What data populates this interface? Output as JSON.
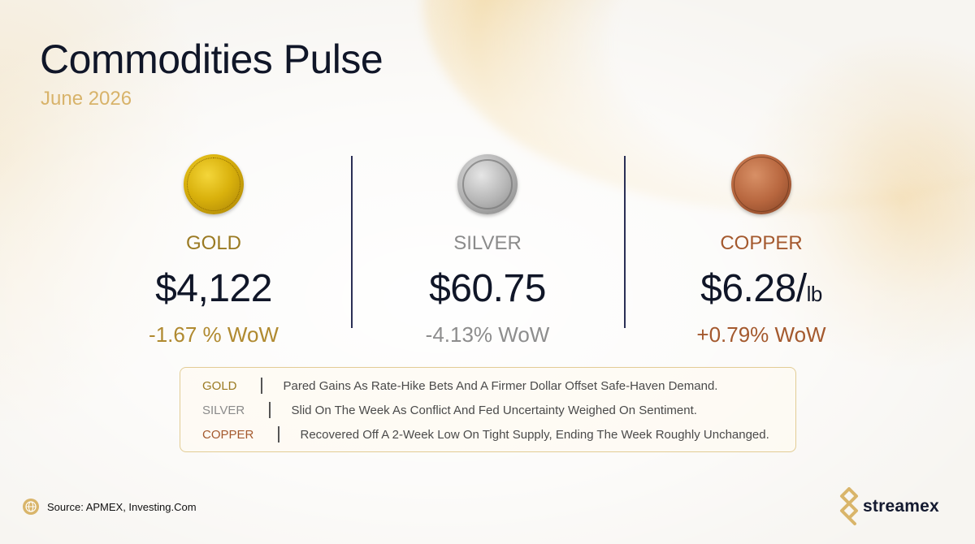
{
  "header": {
    "title": "Commodities Pulse",
    "subtitle": "June 2026"
  },
  "metals": [
    {
      "name": "GOLD",
      "price": "$4,122",
      "unit": "",
      "change": "-1.67 % WoW"
    },
    {
      "name": "SILVER",
      "price": "$60.75",
      "unit": "",
      "change": "-4.13% WoW"
    },
    {
      "name": "COPPER",
      "price": "$6.28/",
      "unit": "lb",
      "change": "+0.79% WoW"
    }
  ],
  "notes": [
    {
      "label": "GOLD",
      "text": "Pared Gains As Rate-Hike Bets And A Firmer Dollar Offset Safe-Haven Demand."
    },
    {
      "label": "SILVER",
      "text": "Slid On The Week As Conflict And Fed Uncertainty Weighed On Sentiment."
    },
    {
      "label": "COPPER",
      "text": "Recovered Off A 2-Week Low On Tight Supply, Ending The Week Roughly Unchanged."
    }
  ],
  "footer": {
    "source": "Source: APMEX, Investing.Com",
    "brand": "streamex"
  },
  "colors": {
    "gold": "#9a7a22",
    "silver": "#8b8b8b",
    "copper": "#a4592e",
    "accent": "#d8b36a",
    "text": "#101628"
  },
  "icons": [
    "gold-coin-icon",
    "silver-coin-icon",
    "copper-coin-icon",
    "globe-icon",
    "streamex-logo-icon"
  ]
}
